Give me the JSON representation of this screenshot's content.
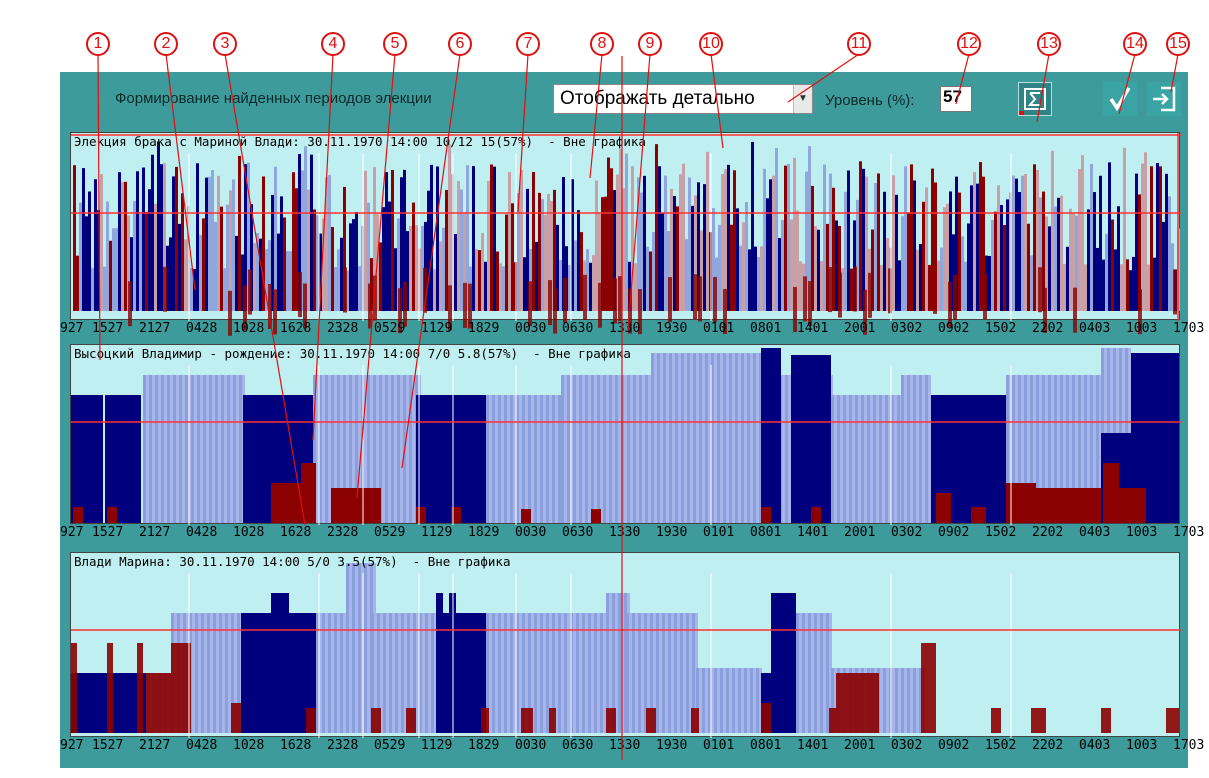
{
  "toolbar": {
    "title": "Формирование найденных периодов элекции",
    "mode_value": "Отображать детально",
    "level_label": "Уровень (%):",
    "level_value": "57",
    "sum_icon": "sigma-icon",
    "ok_icon": "checkmark-icon",
    "exit_icon": "exit-icon"
  },
  "panels": [
    {
      "header": "Элекция брака с Мариной Влади: 30.11.1970 14:00 10/12 15(57%)  - Вне графика"
    },
    {
      "header": "Высоцкий Владимир - рождение: 30.11.1970 14:00 7/0 5.8(57%)  - Вне графика"
    },
    {
      "header": "Влади Марина: 30.11.1970 14:00 5/0 3.5(57%)  - Вне графика"
    }
  ],
  "axis_ticks": [
    "927",
    "1527",
    "2127",
    "0428",
    "1028",
    "1628",
    "2328",
    "0529",
    "1129",
    "1829",
    "0030",
    "0630",
    "1330",
    "1930",
    "0101",
    "0801",
    "1401",
    "2001",
    "0302",
    "0902",
    "1502",
    "2202",
    "0403",
    "1003",
    "1703"
  ],
  "callouts": [
    "1",
    "2",
    "3",
    "4",
    "5",
    "6",
    "7",
    "8",
    "9",
    "10",
    "11",
    "12",
    "13",
    "14",
    "15"
  ],
  "colors": {
    "background": "#bfeff0",
    "navy": "#00007f",
    "light_blue": "#8b9fdc",
    "dark_red": "#8b0000",
    "pink": "#c8a0a8",
    "threshold": "#ff3030",
    "callout": "#e01010",
    "frame": "#3e9b9c"
  }
}
